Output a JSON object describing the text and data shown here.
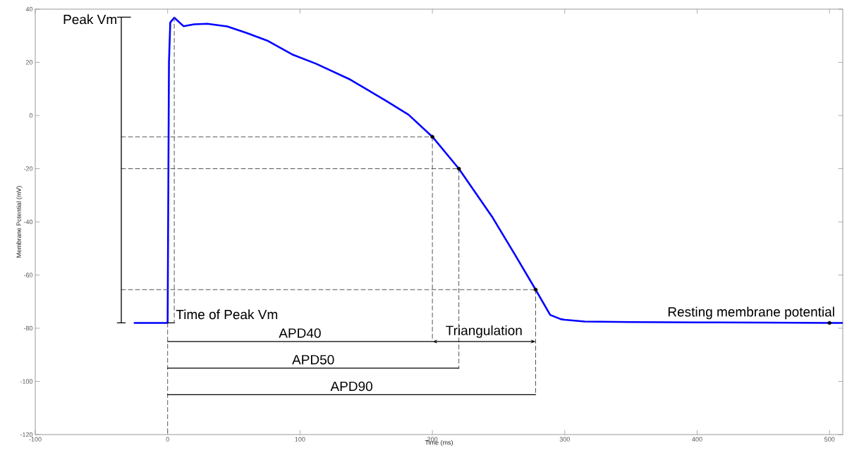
{
  "chart_data": {
    "type": "line",
    "xlabel": "Time (ms)",
    "ylabel": "Membrane Potential (mV)",
    "xlim": [
      -100,
      510
    ],
    "ylim": [
      -120,
      40
    ],
    "xticks": [
      -100,
      0,
      100,
      200,
      300,
      400,
      500
    ],
    "yticks": [
      -120,
      -100,
      -80,
      -60,
      -40,
      -20,
      0,
      20,
      40
    ],
    "grid": false,
    "series": [
      {
        "color": "#0000ff",
        "line_style": "solid",
        "marker": "none",
        "x": [
          -25,
          0,
          1,
          2,
          5,
          12,
          20,
          30,
          45,
          60,
          76,
          94,
          112,
          138,
          165,
          182,
          200,
          220,
          245,
          262,
          278,
          289,
          297,
          300,
          315,
          350,
          400,
          450,
          500,
          510
        ],
        "values": [
          -78,
          -78,
          20,
          35,
          36.8,
          33.6,
          34.3,
          34.5,
          33.5,
          31,
          28,
          23,
          19.5,
          13.5,
          5.5,
          0.3,
          -8,
          -20,
          -38,
          -52,
          -65.5,
          -75,
          -76.6,
          -76.8,
          -77.5,
          -77.7,
          -77.8,
          -77.9,
          -78,
          -78
        ]
      },
      {
        "color": "#555555",
        "line_style": "dashed",
        "marker": "none",
        "x": [
          -35,
          200
        ],
        "values": [
          -8,
          -8
        ]
      },
      {
        "color": "#555555",
        "line_style": "dashed",
        "marker": "none",
        "x": [
          -35,
          220
        ],
        "values": [
          -20,
          -20
        ]
      },
      {
        "color": "#555555",
        "line_style": "dashed",
        "marker": "none",
        "x": [
          -35,
          278
        ],
        "values": [
          -65.5,
          -65.5
        ]
      },
      {
        "color": "#555555",
        "line_style": "dashed",
        "marker": "none",
        "x": [
          0,
          0
        ],
        "values": [
          -78,
          -120
        ]
      },
      {
        "color": "#555555",
        "line_style": "dashed",
        "marker": "none",
        "x": [
          5,
          5
        ],
        "values": [
          37,
          -78
        ]
      },
      {
        "color": "#555555",
        "line_style": "dashed",
        "marker": "none",
        "x": [
          200,
          200
        ],
        "values": [
          -8,
          -85
        ]
      },
      {
        "color": "#555555",
        "line_style": "dashed",
        "marker": "none",
        "x": [
          220,
          220
        ],
        "values": [
          -20,
          -95
        ]
      },
      {
        "color": "#555555",
        "line_style": "dashed",
        "marker": "none",
        "x": [
          278,
          278
        ],
        "values": [
          -65.5,
          -105
        ]
      },
      {
        "name": "Peak Vm",
        "color": "#000000",
        "line_style": "solid",
        "marker": "none",
        "x": [
          -38,
          -28,
          -35,
          -35,
          -38,
          -32
        ],
        "values": [
          37,
          37,
          37,
          -78,
          -78,
          -78
        ]
      },
      {
        "name": "Time of Peak Vm",
        "color": "#000000",
        "line_style": "solid",
        "marker": "none",
        "x": [
          0,
          5
        ],
        "values": [
          -78,
          -78
        ]
      },
      {
        "name": "APD40",
        "color": "#000000",
        "line_style": "solid",
        "x": [
          0,
          200
        ],
        "values": [
          -85,
          -85
        ]
      },
      {
        "name": "Triangulation",
        "color": "#000000",
        "line_style": "solid",
        "x": [
          200,
          278
        ],
        "values": [
          -85,
          -85
        ]
      },
      {
        "name": "APD50",
        "color": "#000000",
        "line_style": "solid",
        "marker": "none",
        "x": [
          0,
          220
        ],
        "values": [
          -95,
          -95
        ]
      },
      {
        "name": "APD90",
        "color": "#000000",
        "line_style": "solid",
        "marker": "none",
        "x": [
          0,
          278
        ],
        "values": [
          -105,
          -105
        ]
      },
      {
        "type": "scatter",
        "color": "#000000",
        "marker": "circle",
        "x": [
          200,
          220,
          278
        ],
        "values": [
          -8,
          -20,
          -65.5
        ]
      },
      {
        "type": "scatter",
        "name": "Resting membrane potential",
        "color": "#000000",
        "marker": "circle",
        "x": [
          500
        ],
        "values": [
          -78
        ]
      }
    ]
  }
}
